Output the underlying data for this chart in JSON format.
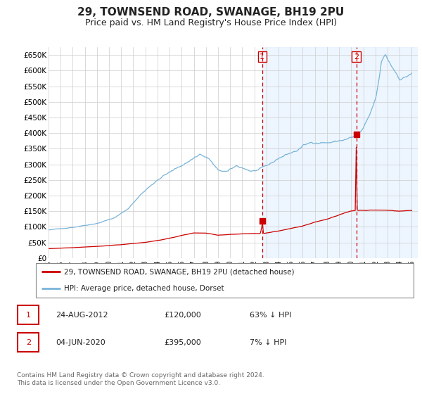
{
  "title": "29, TOWNSEND ROAD, SWANAGE, BH19 2PU",
  "subtitle": "Price paid vs. HM Land Registry's House Price Index (HPI)",
  "title_fontsize": 11,
  "subtitle_fontsize": 9,
  "ylim": [
    0,
    675000
  ],
  "yticks": [
    0,
    50000,
    100000,
    150000,
    200000,
    250000,
    300000,
    350000,
    400000,
    450000,
    500000,
    550000,
    600000,
    650000
  ],
  "background_color": "#ffffff",
  "grid_color": "#cccccc",
  "hpi_color": "#7ab4d8",
  "hpi_fill_color": "#ddeeff",
  "price_color": "#cc0000",
  "transaction1_date": 2012.65,
  "transaction1_price": 120000,
  "transaction2_date": 2020.43,
  "transaction2_price": 395000,
  "legend_entries": [
    "29, TOWNSEND ROAD, SWANAGE, BH19 2PU (detached house)",
    "HPI: Average price, detached house, Dorset"
  ],
  "table_rows": [
    {
      "num": "1",
      "date": "24-AUG-2012",
      "price": "£120,000",
      "pct": "63% ↓ HPI"
    },
    {
      "num": "2",
      "date": "04-JUN-2020",
      "price": "£395,000",
      "pct": "7% ↓ HPI"
    }
  ],
  "footnote": "Contains HM Land Registry data © Crown copyright and database right 2024.\nThis data is licensed under the Open Government Licence v3.0.",
  "xmin": 1995.0,
  "xmax": 2025.5,
  "shade_start": 2012.65,
  "vline_color": "#cc0000",
  "num_label_color": "#cc0000"
}
